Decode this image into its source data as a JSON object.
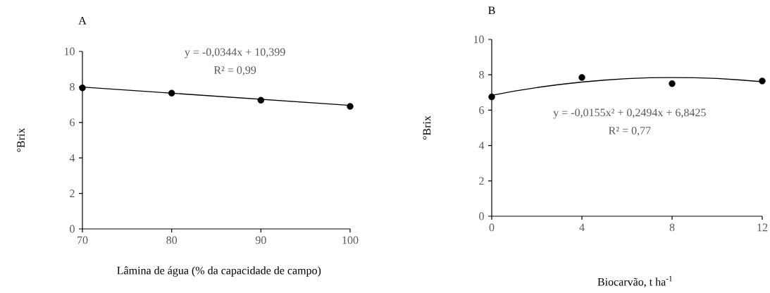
{
  "chart_data": [
    {
      "type": "scatter",
      "title": "A",
      "xlabel": "Lâmina de água (% da capacidade de campo)",
      "ylabel": "°Brix",
      "annotations": [
        "y = -0,0344x + 10,399",
        "R² = 0,99"
      ],
      "series": [
        {
          "marker": "circle",
          "color": "#000000",
          "x": [
            70,
            80,
            90,
            100
          ],
          "values": [
            7.95,
            7.65,
            7.25,
            6.9
          ]
        },
        {
          "type": "line",
          "marker": "none",
          "color": "#000000",
          "x": [
            70,
            100
          ],
          "values": [
            7.99,
            6.96
          ]
        }
      ],
      "xlim": [
        70,
        100
      ],
      "xticks": [
        70,
        80,
        90,
        100
      ],
      "ylim": [
        0,
        10
      ],
      "yticks": [
        0,
        2,
        4,
        6,
        8,
        10
      ]
    },
    {
      "type": "scatter",
      "title": "B",
      "xlabel": "Biocarvão, t ha$^{-1}$",
      "ylabel": "°Brix",
      "annotations": [
        "y = -0,0155x² + 0,2494x + 6,8425",
        "R² = 0,77"
      ],
      "series": [
        {
          "marker": "circle",
          "color": "#000000",
          "x": [
            0,
            4,
            8,
            12
          ],
          "values": [
            6.75,
            7.85,
            7.5,
            7.65
          ]
        },
        {
          "type": "line",
          "marker": "none",
          "color": "#000000",
          "x": [
            0,
            1,
            2,
            3,
            4,
            5,
            6,
            7,
            8,
            9,
            10,
            11,
            12
          ],
          "values": [
            6.84,
            7.08,
            7.28,
            7.45,
            7.59,
            7.7,
            7.78,
            7.83,
            7.84,
            7.83,
            7.79,
            7.71,
            7.61
          ]
        }
      ],
      "xlim": [
        0,
        12
      ],
      "xticks": [
        0,
        4,
        8,
        12
      ],
      "ylim": [
        0,
        10
      ],
      "yticks": [
        0,
        2,
        4,
        6,
        8,
        10
      ]
    }
  ]
}
